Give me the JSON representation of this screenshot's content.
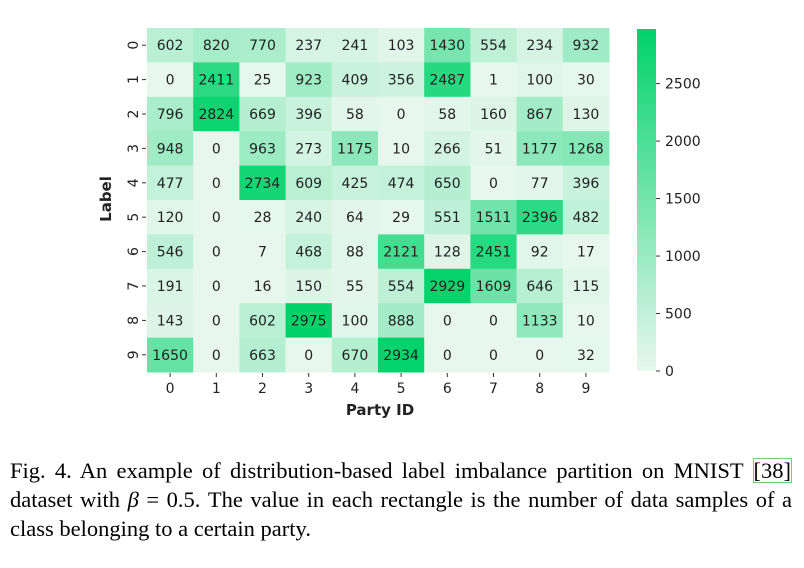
{
  "chart_data": {
    "type": "heatmap",
    "xlabel": "Party ID",
    "ylabel": "Label",
    "x_tick_labels": [
      "0",
      "1",
      "2",
      "3",
      "4",
      "5",
      "6",
      "7",
      "8",
      "9"
    ],
    "y_tick_labels": [
      "0",
      "1",
      "2",
      "3",
      "4",
      "5",
      "6",
      "7",
      "8",
      "9"
    ],
    "values": [
      [
        602,
        820,
        770,
        237,
        241,
        103,
        1430,
        554,
        234,
        932
      ],
      [
        0,
        2411,
        25,
        923,
        409,
        356,
        2487,
        1,
        100,
        30
      ],
      [
        796,
        2824,
        669,
        396,
        58,
        0,
        58,
        160,
        867,
        130
      ],
      [
        948,
        0,
        963,
        273,
        1175,
        10,
        266,
        51,
        1177,
        1268
      ],
      [
        477,
        0,
        2734,
        609,
        425,
        474,
        650,
        0,
        77,
        396
      ],
      [
        120,
        0,
        28,
        240,
        64,
        29,
        551,
        1511,
        2396,
        482
      ],
      [
        546,
        0,
        7,
        468,
        88,
        2121,
        128,
        2451,
        92,
        17
      ],
      [
        191,
        0,
        16,
        150,
        55,
        554,
        2929,
        1609,
        646,
        115
      ],
      [
        143,
        0,
        602,
        2975,
        100,
        888,
        0,
        0,
        1133,
        10
      ],
      [
        1650,
        0,
        663,
        0,
        670,
        2934,
        0,
        0,
        0,
        32
      ]
    ],
    "colorbar": {
      "ticks": [
        "0",
        "500",
        "1000",
        "1500",
        "2000",
        "2500"
      ],
      "range": [
        0,
        2975
      ],
      "color_low": "#e8f7ee",
      "color_high": "#00d26a"
    }
  },
  "caption": {
    "prefix": "Fig. 4.  An example of distribution-based label imbalance partition on MNIST ",
    "ref": "[38]",
    "middle": " dataset with ",
    "beta_symbol": "β",
    "equation_rest": " = 0.5. The value in each rectangle is the number of data samples of a class belonging to a certain party."
  }
}
